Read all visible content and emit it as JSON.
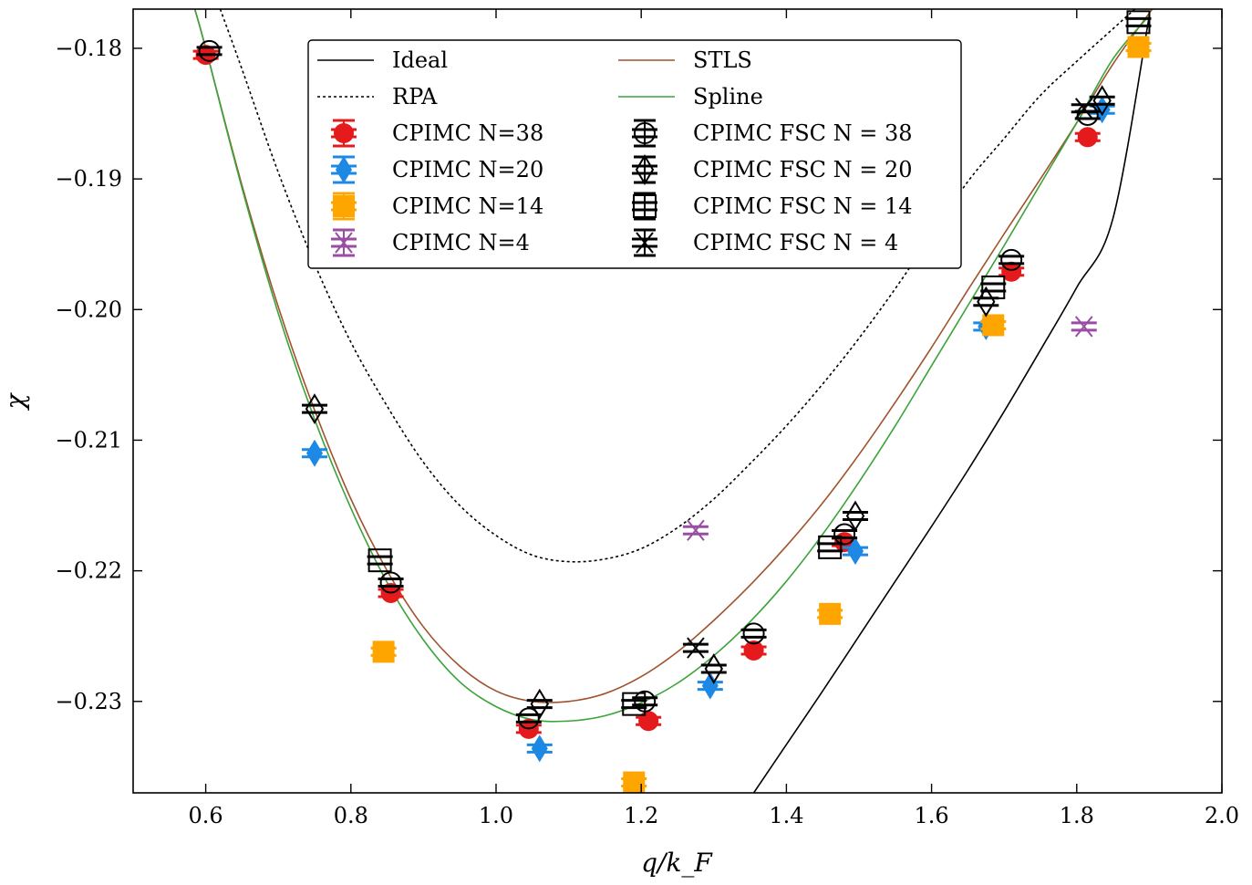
{
  "chart_data": {
    "type": "scatter",
    "title": "",
    "xlabel": "q/k_F",
    "ylabel": "χ",
    "xlim": [
      0.5,
      2.0
    ],
    "ylim": [
      -0.237,
      -0.177
    ],
    "xticks": [
      0.6,
      0.8,
      1.0,
      1.2,
      1.4,
      1.6,
      1.8,
      2.0
    ],
    "xtick_labels": [
      "0.6",
      "0.8",
      "1.0",
      "1.2",
      "1.4",
      "1.6",
      "1.8",
      "2.0"
    ],
    "yticks": [
      -0.18,
      -0.19,
      -0.2,
      -0.21,
      -0.22,
      -0.23
    ],
    "ytick_labels": [
      "−0.18",
      "−0.19",
      "−0.20",
      "−0.21",
      "−0.22",
      "−0.23"
    ],
    "legend_position": "top-center",
    "lines": [
      {
        "name": "Ideal",
        "color": "#000000",
        "dash": "solid",
        "x": [
          1.355,
          1.4,
          1.45,
          1.5,
          1.55,
          1.6,
          1.65,
          1.7,
          1.75,
          1.8,
          1.85,
          1.9
        ],
        "y": [
          -0.237,
          -0.2333,
          -0.2292,
          -0.225,
          -0.2208,
          -0.2166,
          -0.2123,
          -0.2078,
          -0.2031,
          -0.1983,
          -0.193,
          -0.1775
        ]
      },
      {
        "name": "RPA",
        "color": "#000000",
        "dash": "dotted",
        "x": [
          0.62,
          0.65,
          0.7,
          0.75,
          0.8,
          0.85,
          0.9,
          0.95,
          1.0,
          1.05,
          1.1,
          1.15,
          1.2,
          1.25,
          1.3,
          1.35,
          1.4,
          1.45,
          1.5,
          1.55,
          1.6,
          1.65,
          1.7,
          1.75,
          1.8,
          1.85,
          1.88
        ],
        "y": [
          -0.177,
          -0.1816,
          -0.1895,
          -0.1965,
          -0.2025,
          -0.2074,
          -0.2117,
          -0.215,
          -0.2173,
          -0.2188,
          -0.2193,
          -0.2191,
          -0.2183,
          -0.2167,
          -0.2145,
          -0.2118,
          -0.2089,
          -0.2057,
          -0.2022,
          -0.1984,
          -0.1943,
          -0.1902,
          -0.1869,
          -0.1836,
          -0.181,
          -0.1785,
          -0.177
        ]
      },
      {
        "name": "STLS",
        "color": "#a0522d",
        "dash": "solid",
        "x": [
          0.585,
          0.6,
          0.65,
          0.7,
          0.75,
          0.8,
          0.85,
          0.9,
          0.95,
          1.0,
          1.05,
          1.1,
          1.15,
          1.2,
          1.25,
          1.3,
          1.35,
          1.4,
          1.45,
          1.5,
          1.55,
          1.6,
          1.65,
          1.7,
          1.75,
          1.8,
          1.85,
          1.9,
          1.905
        ],
        "y": [
          -0.177,
          -0.18,
          -0.1905,
          -0.1998,
          -0.2077,
          -0.2145,
          -0.22,
          -0.2243,
          -0.2273,
          -0.2292,
          -0.23,
          -0.23,
          -0.2294,
          -0.2281,
          -0.2262,
          -0.2238,
          -0.2211,
          -0.2181,
          -0.2148,
          -0.2111,
          -0.2071,
          -0.2029,
          -0.1985,
          -0.1942,
          -0.19,
          -0.1857,
          -0.1812,
          -0.1773,
          -0.177
        ]
      },
      {
        "name": "Spline",
        "color": "#3aa33a",
        "dash": "solid",
        "x": [
          0.585,
          0.6,
          0.65,
          0.7,
          0.75,
          0.8,
          0.85,
          0.9,
          0.95,
          1.0,
          1.05,
          1.1,
          1.15,
          1.2,
          1.25,
          1.3,
          1.35,
          1.4,
          1.45,
          1.5,
          1.55,
          1.6,
          1.65,
          1.7,
          1.75,
          1.8,
          1.85,
          1.9
        ],
        "y": [
          -0.177,
          -0.18,
          -0.1907,
          -0.2003,
          -0.2084,
          -0.2152,
          -0.2209,
          -0.2253,
          -0.2285,
          -0.2304,
          -0.2314,
          -0.2315,
          -0.2311,
          -0.2301,
          -0.2286,
          -0.2265,
          -0.2239,
          -0.2208,
          -0.2172,
          -0.2132,
          -0.2089,
          -0.2043,
          -0.1997,
          -0.1951,
          -0.1904,
          -0.1857,
          -0.1808,
          -0.1775
        ]
      }
    ],
    "series": [
      {
        "name": "CPIMC N=38",
        "marker": "circle",
        "color": "#e41a1c",
        "filled": true,
        "x": [
          0.6,
          0.855,
          1.045,
          1.21,
          1.355,
          1.48,
          1.71,
          1.815
        ],
        "y": [
          -0.1805,
          -0.2217,
          -0.2321,
          -0.2315,
          -0.2261,
          -0.2178,
          -0.1971,
          -0.1868
        ]
      },
      {
        "name": "CPIMC N=20",
        "marker": "diamond",
        "color": "#1e88e5",
        "filled": true,
        "x": [
          0.75,
          1.06,
          1.295,
          1.495,
          1.675,
          1.835
        ],
        "y": [
          -0.211,
          -0.2336,
          -0.2288,
          -0.2185,
          -0.2013,
          -0.1847
        ]
      },
      {
        "name": "CPIMC N=14",
        "marker": "square",
        "color": "#ffa500",
        "filled": true,
        "x": [
          0.845,
          1.19,
          1.46,
          1.685,
          1.885
        ],
        "y": [
          -0.2262,
          -0.2362,
          -0.2233,
          -0.2012,
          -0.1799
        ]
      },
      {
        "name": "CPIMC N=4",
        "marker": "cross",
        "color": "#984ea3",
        "filled": false,
        "x": [
          1.275,
          1.81
        ],
        "y": [
          -0.2169,
          -0.2013
        ]
      },
      {
        "name": "CPIMC FSC N = 38",
        "marker": "circle",
        "color": "#000000",
        "filled": false,
        "x": [
          0.605,
          0.855,
          1.045,
          1.205,
          1.355,
          1.48,
          1.71,
          1.815
        ],
        "y": [
          -0.1802,
          -0.2209,
          -0.2313,
          -0.23,
          -0.2248,
          -0.2172,
          -0.1962,
          -0.1851
        ]
      },
      {
        "name": "CPIMC FSC N = 20",
        "marker": "diamond",
        "color": "#000000",
        "filled": false,
        "x": [
          0.75,
          1.06,
          1.3,
          1.495,
          1.675,
          1.835
        ],
        "y": [
          -0.2076,
          -0.2302,
          -0.2275,
          -0.2158,
          -0.1994,
          -0.184
        ]
      },
      {
        "name": "CPIMC FSC N = 14",
        "marker": "square",
        "color": "#000000",
        "filled": false,
        "x": [
          0.84,
          1.19,
          1.46,
          1.685,
          1.885
        ],
        "y": [
          -0.2192,
          -0.2302,
          -0.2182,
          -0.1983,
          -0.178
        ]
      },
      {
        "name": "CPIMC FSC N = 4",
        "marker": "cross",
        "color": "#000000",
        "filled": false,
        "x": [
          1.275,
          1.81
        ],
        "y": [
          -0.2259,
          -0.1846
        ]
      }
    ],
    "legend": [
      {
        "label": "Ideal",
        "kind": "line",
        "ref": "Ideal"
      },
      {
        "label": "STLS",
        "kind": "line",
        "ref": "STLS"
      },
      {
        "label": "RPA",
        "kind": "line",
        "ref": "RPA"
      },
      {
        "label": "Spline",
        "kind": "line",
        "ref": "Spline"
      },
      {
        "label": "CPIMC N=38",
        "kind": "marker",
        "ref": "CPIMC N=38"
      },
      {
        "label": "CPIMC FSC N = 38",
        "kind": "marker",
        "ref": "CPIMC FSC N = 38"
      },
      {
        "label": "CPIMC N=20",
        "kind": "marker",
        "ref": "CPIMC N=20"
      },
      {
        "label": "CPIMC FSC N = 20",
        "kind": "marker",
        "ref": "CPIMC FSC N = 20"
      },
      {
        "label": "CPIMC N=14",
        "kind": "marker",
        "ref": "CPIMC N=14"
      },
      {
        "label": "CPIMC FSC N = 14",
        "kind": "marker",
        "ref": "CPIMC FSC N = 14"
      },
      {
        "label": "CPIMC N=4",
        "kind": "marker",
        "ref": "CPIMC N=4"
      },
      {
        "label": "CPIMC FSC N = 4",
        "kind": "marker",
        "ref": "CPIMC FSC N = 4"
      }
    ]
  }
}
